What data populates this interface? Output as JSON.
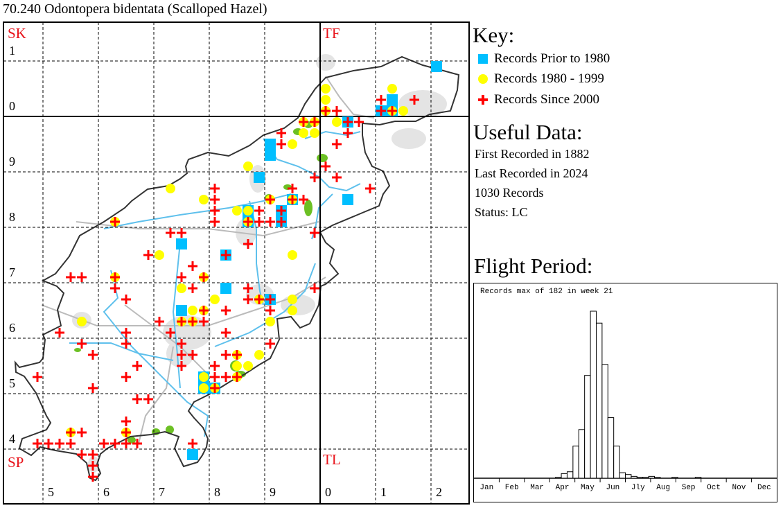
{
  "title": "70.240 Odontopera bidentata (Scalloped Hazel)",
  "map": {
    "grid_labels": {
      "squares": [
        "SK",
        "TF",
        "SP",
        "TL"
      ],
      "left": [
        "1",
        "0",
        "9",
        "8",
        "7",
        "6",
        "5",
        "4"
      ],
      "bottom": [
        "5",
        "6",
        "7",
        "8",
        "9",
        "0",
        "1",
        "2"
      ]
    },
    "colors": {
      "prior_1980": "#00bfff",
      "r1980_1999": "#ffff00",
      "since_2000": "#ff0000"
    },
    "records_prior_1980": [
      [
        521,
        309
      ],
      [
        513,
        303
      ],
      [
        513,
        301
      ],
      [
        511,
        301
      ],
      [
        505,
        299
      ],
      [
        491,
        295
      ],
      [
        491,
        293
      ],
      [
        489,
        289
      ],
      [
        505,
        285
      ],
      [
        487,
        283
      ],
      [
        487,
        281
      ],
      [
        495,
        285
      ],
      [
        493,
        283
      ],
      [
        493,
        281
      ],
      [
        475,
        277
      ],
      [
        483,
        275
      ],
      [
        483,
        269
      ],
      [
        491,
        267
      ],
      [
        475,
        265
      ],
      [
        479,
        253
      ],
      [
        479,
        251
      ],
      [
        481,
        251
      ],
      [
        477,
        239
      ]
    ],
    "records_1980_1999": [
      [
        501,
        305
      ],
      [
        501,
        303
      ],
      [
        501,
        301
      ],
      [
        513,
        305
      ],
      [
        513,
        301
      ],
      [
        515,
        301
      ],
      [
        497,
        297
      ],
      [
        499,
        297
      ],
      [
        503,
        299
      ],
      [
        499,
        299
      ],
      [
        497,
        299
      ],
      [
        495,
        295
      ],
      [
        491,
        285
      ],
      [
        495,
        285
      ],
      [
        487,
        291
      ],
      [
        473,
        287
      ],
      [
        479,
        285
      ],
      [
        485,
        283
      ],
      [
        487,
        283
      ],
      [
        463,
        281
      ],
      [
        487,
        281
      ],
      [
        471,
        275
      ],
      [
        495,
        275
      ],
      [
        463,
        271
      ],
      [
        479,
        271
      ],
      [
        475,
        269
      ],
      [
        481,
        267
      ],
      [
        489,
        267
      ],
      [
        495,
        267
      ],
      [
        477,
        265
      ],
      [
        479,
        265
      ],
      [
        495,
        265
      ],
      [
        475,
        263
      ],
      [
        477,
        263
      ],
      [
        491,
        263
      ],
      [
        457,
        263
      ],
      [
        479,
        253
      ],
      [
        479,
        251
      ],
      [
        465,
        243
      ],
      [
        455,
        243
      ],
      [
        485,
        257
      ],
      [
        489,
        257
      ],
      [
        485,
        255
      ],
      [
        487,
        255
      ],
      [
        485,
        253
      ],
      [
        481,
        251
      ]
    ],
    "records_since_2000": [
      [
        501,
        301
      ],
      [
        503,
        301
      ],
      [
        511,
        303
      ],
      [
        513,
        301
      ],
      [
        511,
        301
      ],
      [
        517,
        303
      ],
      [
        497,
        299
      ],
      [
        499,
        299
      ],
      [
        505,
        299
      ],
      [
        507,
        299
      ],
      [
        493,
        297
      ],
      [
        505,
        297
      ],
      [
        493,
        295
      ],
      [
        503,
        295
      ],
      [
        501,
        291
      ],
      [
        499,
        289
      ],
      [
        503,
        289
      ],
      [
        509,
        287
      ],
      [
        495,
        287
      ],
      [
        491,
        285
      ],
      [
        495,
        285
      ],
      [
        497,
        285
      ],
      [
        493,
        283
      ],
      [
        493,
        281
      ],
      [
        491,
        281
      ],
      [
        481,
        287
      ],
      [
        481,
        285
      ],
      [
        481,
        283
      ],
      [
        489,
        283
      ],
      [
        463,
        281
      ],
      [
        481,
        281
      ],
      [
        487,
        281
      ],
      [
        489,
        281
      ],
      [
        473,
        279
      ],
      [
        475,
        279
      ],
      [
        499,
        279
      ],
      [
        487,
        277
      ],
      [
        469,
        275
      ],
      [
        483,
        275
      ],
      [
        477,
        273
      ],
      [
        463,
        271
      ],
      [
        475,
        271
      ],
      [
        479,
        271
      ],
      [
        463,
        269
      ],
      [
        477,
        269
      ],
      [
        487,
        269
      ],
      [
        499,
        269
      ],
      [
        487,
        267
      ],
      [
        489,
        267
      ],
      [
        491,
        267
      ],
      [
        479,
        265
      ],
      [
        483,
        265
      ],
      [
        491,
        265
      ],
      [
        471,
        263
      ],
      [
        475,
        263
      ],
      [
        477,
        263
      ],
      [
        479,
        263
      ],
      [
        473,
        261
      ],
      [
        483,
        261
      ],
      [
        465,
        261
      ],
      [
        455,
        271
      ],
      [
        457,
        271
      ],
      [
        465,
        267
      ],
      [
        453,
        261
      ],
      [
        457,
        259
      ],
      [
        465,
        259
      ],
      [
        475,
        259
      ],
      [
        459,
        257
      ],
      [
        475,
        257
      ],
      [
        477,
        257
      ],
      [
        467,
        255
      ],
      [
        475,
        255
      ],
      [
        449,
        253
      ],
      [
        465,
        253
      ],
      [
        459,
        251
      ],
      [
        467,
        249
      ],
      [
        469,
        249
      ],
      [
        465,
        245
      ],
      [
        465,
        243
      ],
      [
        455,
        243
      ],
      [
        457,
        243
      ],
      [
        449,
        241
      ],
      [
        451,
        241
      ],
      [
        453,
        241
      ],
      [
        455,
        241
      ],
      [
        461,
        241
      ],
      [
        463,
        241
      ],
      [
        465,
        241
      ],
      [
        467,
        241
      ],
      [
        477,
        241
      ],
      [
        457,
        239
      ],
      [
        459,
        239
      ],
      [
        459,
        237
      ],
      [
        459,
        235
      ],
      [
        491,
        259
      ],
      [
        483,
        257
      ],
      [
        485,
        257
      ],
      [
        481,
        255
      ],
      [
        481,
        253
      ],
      [
        483,
        253
      ],
      [
        485,
        253
      ],
      [
        481,
        251
      ]
    ]
  },
  "key": {
    "heading": "Key:",
    "items": [
      {
        "label": "Records Prior to 1980",
        "symbol": "square",
        "color": "#00bfff"
      },
      {
        "label": "Records 1980 - 1999",
        "symbol": "circle",
        "color": "#ffff00"
      },
      {
        "label": "Records Since 2000",
        "symbol": "cross",
        "color": "#ff0000"
      }
    ]
  },
  "useful_data": {
    "heading": "Useful Data:",
    "lines": [
      "First Recorded in 1882",
      "Last Recorded in 2024",
      "1030 Records",
      "Status: LC"
    ]
  },
  "flight_period": {
    "heading": "Flight Period:"
  },
  "chart_data": {
    "type": "bar",
    "title": "Records max of 182 in week 21",
    "x": "week (1-52)",
    "months": [
      "Jan",
      "Feb",
      "Mar",
      "Apr",
      "May",
      "Jun",
      "Jly",
      "Aug",
      "Sep",
      "Oct",
      "Nov",
      "Dec"
    ],
    "values": [
      0,
      0,
      0,
      0,
      0,
      0,
      0,
      0,
      0,
      0,
      0,
      0,
      0,
      0,
      1,
      5,
      7,
      35,
      53,
      112,
      182,
      169,
      124,
      66,
      35,
      6,
      4,
      2,
      1,
      1,
      2,
      1,
      0,
      0,
      1,
      0,
      0,
      0,
      1,
      0,
      0,
      0,
      0,
      0,
      0,
      0,
      0,
      0,
      0,
      0,
      0,
      0
    ],
    "ylim": [
      0,
      182
    ]
  }
}
